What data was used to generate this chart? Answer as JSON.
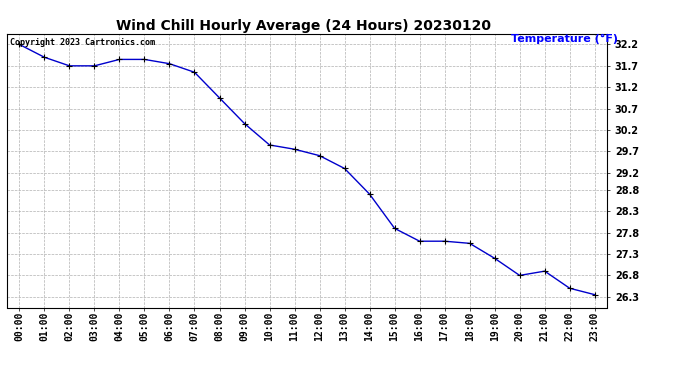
{
  "title": "Wind Chill Hourly Average (24 Hours) 20230120",
  "ylabel": "Temperature (°F)",
  "copyright_text": "Copyright 2023 Cartronics.com",
  "line_color": "#0000cc",
  "marker_color": "#000000",
  "background_color": "#ffffff",
  "grid_color": "#b0b0b0",
  "ylabel_color": "#0000ff",
  "x_labels": [
    "00:00",
    "01:00",
    "02:00",
    "03:00",
    "04:00",
    "05:00",
    "06:00",
    "07:00",
    "08:00",
    "09:00",
    "10:00",
    "11:00",
    "12:00",
    "13:00",
    "14:00",
    "15:00",
    "16:00",
    "17:00",
    "18:00",
    "19:00",
    "20:00",
    "21:00",
    "22:00",
    "23:00"
  ],
  "y_values": [
    32.2,
    31.9,
    31.7,
    31.7,
    31.85,
    31.85,
    31.75,
    31.55,
    30.95,
    30.35,
    29.85,
    29.75,
    29.6,
    29.3,
    28.7,
    27.9,
    27.6,
    27.6,
    27.55,
    27.2,
    26.8,
    26.9,
    26.5,
    26.35
  ],
  "ylim_min": 26.05,
  "ylim_max": 32.45,
  "ytick_values": [
    26.3,
    26.8,
    27.3,
    27.8,
    28.3,
    28.8,
    29.2,
    29.7,
    30.2,
    30.7,
    31.2,
    31.7,
    32.2
  ],
  "title_fontsize": 10,
  "tick_fontsize": 7,
  "ylabel_fontsize": 8,
  "copyright_fontsize": 6
}
